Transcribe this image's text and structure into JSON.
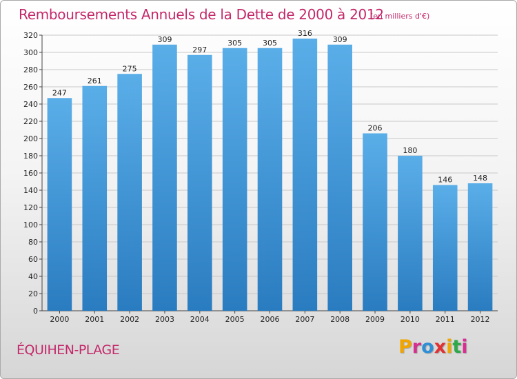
{
  "header": {
    "title": "Remboursements Annuels de la Dette de 2000 à 2012",
    "unit": "(en milliers d'€)"
  },
  "footer": {
    "commune": "ÉQUIHEN-PLAGE",
    "logo_letters": [
      "P",
      "r",
      "o",
      "x",
      "i",
      "t",
      "i"
    ],
    "logo_colors": [
      "#f0a500",
      "#d62f8f",
      "#2f8fd6",
      "#e03232",
      "#f0a500",
      "#2fa84a",
      "#d62f8f"
    ]
  },
  "colors": {
    "bar_top": "#5aaee8",
    "bar_bottom": "#2a7cc0",
    "grid": "#c8c8c8",
    "title": "#c4286a"
  },
  "chart_data": {
    "type": "bar",
    "title": "Remboursements Annuels de la Dette de 2000 à 2012",
    "subtitle": "(en milliers d'€)",
    "categories": [
      "2000",
      "2001",
      "2002",
      "2003",
      "2004",
      "2005",
      "2006",
      "2007",
      "2008",
      "2009",
      "2010",
      "2011",
      "2012"
    ],
    "values": [
      247,
      261,
      275,
      309,
      297,
      305,
      305,
      316,
      309,
      206,
      180,
      146,
      148
    ],
    "ylim": [
      0,
      320
    ],
    "yticks": [
      0,
      20,
      40,
      60,
      80,
      100,
      120,
      140,
      160,
      180,
      200,
      220,
      240,
      260,
      280,
      300,
      320
    ],
    "grid": true,
    "legend": "none"
  }
}
